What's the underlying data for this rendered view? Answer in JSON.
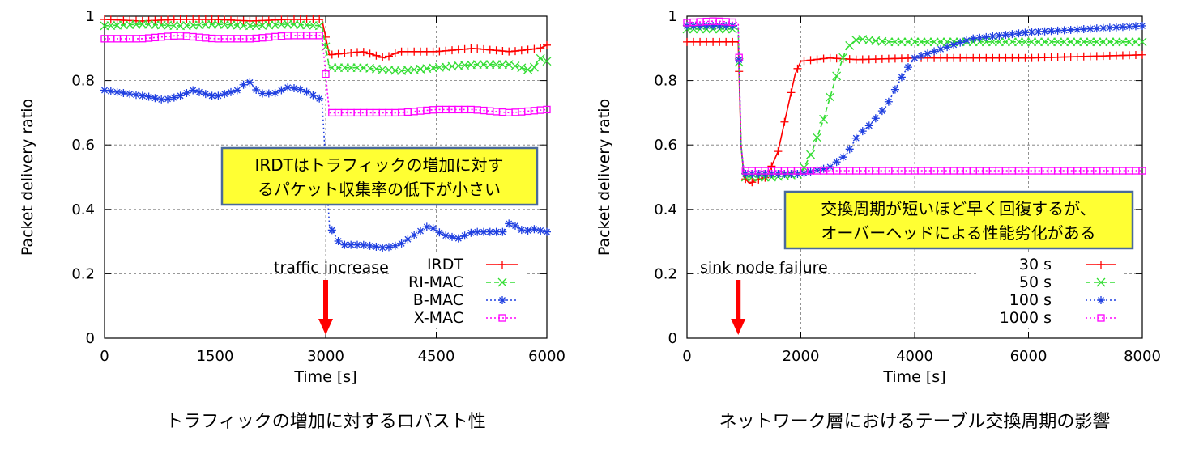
{
  "chart_data": [
    {
      "type": "line",
      "caption": "トラフィックの増加に対するロバスト性",
      "xlabel": "Time [s]",
      "ylabel": "Packet delivery ratio",
      "xlim": [
        0,
        6000
      ],
      "ylim": [
        0,
        1
      ],
      "xticks": [
        "0",
        "1500",
        "3000",
        "4500",
        "6000"
      ],
      "yticks": [
        "0",
        "0.2",
        "0.4",
        "0.6",
        "0.8",
        "1"
      ],
      "grid": true,
      "legend_position": "bottom-right",
      "annotation": "traffic increase",
      "annotation_x": 3000,
      "callout": [
        "IRDTはトラフィックの増加に対す",
        "るパケット収集率の低下が小さい"
      ],
      "colors": {
        "IRDT": "#ff0000",
        "RI-MAC": "#33dd33",
        "B-MAC": "#1f3fe0",
        "X-MAC": "#ff00ff",
        "arrow": "#ff0000",
        "callout_fill": "#ffff33",
        "callout_border": "#4a6a9a"
      },
      "series": [
        {
          "name": "IRDT",
          "marker": "plus",
          "dash": "solid",
          "x": [
            0,
            500,
            1000,
            1500,
            2000,
            2500,
            2950,
            3050,
            3500,
            3800,
            4000,
            4500,
            5000,
            5500,
            5900,
            6000
          ],
          "y": [
            0.99,
            0.985,
            0.99,
            0.99,
            0.985,
            0.99,
            0.99,
            0.88,
            0.89,
            0.87,
            0.89,
            0.89,
            0.9,
            0.89,
            0.9,
            0.91
          ]
        },
        {
          "name": "RI-MAC",
          "marker": "x",
          "dash": "dashed",
          "x": [
            0,
            500,
            1000,
            1500,
            2000,
            2500,
            2950,
            3050,
            3500,
            4000,
            4500,
            5000,
            5500,
            5800,
            5900,
            6000
          ],
          "y": [
            0.97,
            0.975,
            0.97,
            0.975,
            0.97,
            0.975,
            0.97,
            0.84,
            0.84,
            0.83,
            0.84,
            0.85,
            0.85,
            0.83,
            0.87,
            0.86
          ]
        },
        {
          "name": "B-MAC",
          "marker": "star",
          "dash": "dotted",
          "x": [
            0,
            300,
            600,
            800,
            1000,
            1200,
            1500,
            1800,
            1950,
            2100,
            2300,
            2500,
            2700,
            2950,
            3050,
            3200,
            3500,
            3800,
            4000,
            4200,
            4400,
            4600,
            4800,
            5000,
            5200,
            5400,
            5500,
            5700,
            5800,
            6000
          ],
          "y": [
            0.77,
            0.76,
            0.75,
            0.74,
            0.75,
            0.77,
            0.75,
            0.77,
            0.8,
            0.76,
            0.76,
            0.78,
            0.77,
            0.74,
            0.35,
            0.29,
            0.29,
            0.28,
            0.29,
            0.32,
            0.35,
            0.32,
            0.31,
            0.33,
            0.33,
            0.33,
            0.36,
            0.33,
            0.34,
            0.33
          ]
        },
        {
          "name": "X-MAC",
          "marker": "square",
          "dash": "dotted",
          "x": [
            0,
            500,
            1000,
            1500,
            2000,
            2500,
            2950,
            3050,
            3500,
            4000,
            4500,
            5000,
            5500,
            6000
          ],
          "y": [
            0.93,
            0.93,
            0.94,
            0.93,
            0.93,
            0.94,
            0.94,
            0.7,
            0.7,
            0.7,
            0.71,
            0.71,
            0.7,
            0.71
          ]
        }
      ]
    },
    {
      "type": "line",
      "caption": "ネットワーク層におけるテーブル交換周期の影響",
      "xlabel": "Time [s]",
      "ylabel": "Packet delivery ratio",
      "xlim": [
        0,
        8000
      ],
      "ylim": [
        0,
        1
      ],
      "xticks": [
        "0",
        "2000",
        "4000",
        "6000",
        "8000"
      ],
      "yticks": [
        "0",
        "0.2",
        "0.4",
        "0.6",
        "0.8",
        "1"
      ],
      "grid": true,
      "legend_position": "bottom-right",
      "annotation": "sink node failure",
      "annotation_x": 900,
      "callout": [
        "交換周期が短いほど早く回復するが、",
        "オーバーヘッドによる性能劣化がある"
      ],
      "colors": {
        "30 s": "#ff0000",
        "50 s": "#33dd33",
        "100 s": "#1f3fe0",
        "1000 s": "#ff00ff",
        "arrow": "#ff0000",
        "callout_fill": "#ffff33",
        "callout_border": "#4a6a9a"
      },
      "series": [
        {
          "name": "30 s",
          "marker": "plus",
          "dash": "solid",
          "x": [
            0,
            500,
            900,
            950,
            1000,
            1100,
            1200,
            1400,
            1600,
            1700,
            1800,
            1900,
            2000,
            2500,
            3000,
            4000,
            5000,
            6000,
            7000,
            8000
          ],
          "y": [
            0.92,
            0.92,
            0.92,
            0.6,
            0.5,
            0.48,
            0.49,
            0.5,
            0.58,
            0.66,
            0.74,
            0.82,
            0.86,
            0.87,
            0.865,
            0.87,
            0.87,
            0.87,
            0.875,
            0.88
          ]
        },
        {
          "name": "50 s",
          "marker": "x",
          "dash": "dashed",
          "x": [
            0,
            500,
            900,
            950,
            1000,
            1500,
            2000,
            2200,
            2400,
            2600,
            2800,
            3000,
            3500,
            4000,
            5000,
            6000,
            7000,
            8000
          ],
          "y": [
            0.96,
            0.96,
            0.96,
            0.6,
            0.5,
            0.5,
            0.51,
            0.58,
            0.68,
            0.8,
            0.9,
            0.93,
            0.92,
            0.92,
            0.92,
            0.92,
            0.92,
            0.92
          ]
        },
        {
          "name": "100 s",
          "marker": "star",
          "dash": "dotted",
          "x": [
            0,
            500,
            900,
            950,
            1000,
            1500,
            2000,
            2500,
            2800,
            3000,
            3200,
            3500,
            3800,
            4000,
            4500,
            5000,
            6000,
            7000,
            8000
          ],
          "y": [
            0.97,
            0.97,
            0.97,
            0.6,
            0.51,
            0.51,
            0.51,
            0.53,
            0.57,
            0.63,
            0.66,
            0.72,
            0.82,
            0.87,
            0.9,
            0.93,
            0.95,
            0.96,
            0.97
          ]
        },
        {
          "name": "1000 s",
          "marker": "square",
          "dash": "dotted",
          "x": [
            0,
            500,
            900,
            950,
            1000,
            2000,
            3000,
            4000,
            5000,
            6000,
            7000,
            8000
          ],
          "y": [
            0.98,
            0.985,
            0.98,
            0.6,
            0.52,
            0.52,
            0.52,
            0.52,
            0.52,
            0.52,
            0.52,
            0.52
          ]
        }
      ]
    }
  ]
}
